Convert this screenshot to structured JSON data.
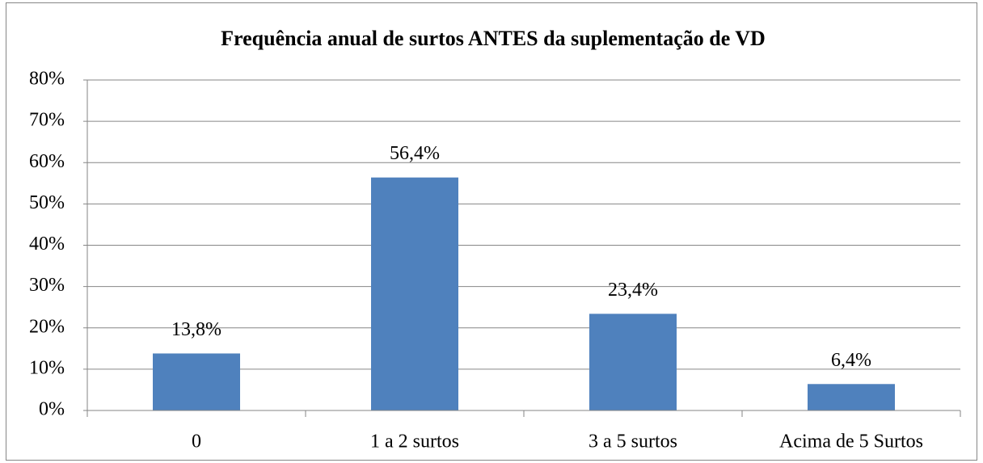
{
  "chart_data": {
    "type": "bar",
    "title": "Frequência anual de surtos ANTES da suplementação de VD",
    "categories": [
      "0",
      "1 a 2 surtos",
      "3 a 5 surtos",
      "Acima de 5 Surtos"
    ],
    "values": [
      13.8,
      56.4,
      23.4,
      6.4
    ],
    "value_labels": [
      "13,8%",
      "56,4%",
      "23,4%",
      "6,4%"
    ],
    "color": "#4f81bd",
    "ylim": [
      0,
      80
    ],
    "yticks": [
      {
        "value": 0,
        "label": "0%"
      },
      {
        "value": 10,
        "label": "10%"
      },
      {
        "value": 20,
        "label": "20%"
      },
      {
        "value": 30,
        "label": "30%"
      },
      {
        "value": 40,
        "label": "40%"
      },
      {
        "value": 50,
        "label": "50%"
      },
      {
        "value": 60,
        "label": "60%"
      },
      {
        "value": 70,
        "label": "70%"
      },
      {
        "value": 80,
        "label": "80%"
      }
    ],
    "grid": true
  }
}
